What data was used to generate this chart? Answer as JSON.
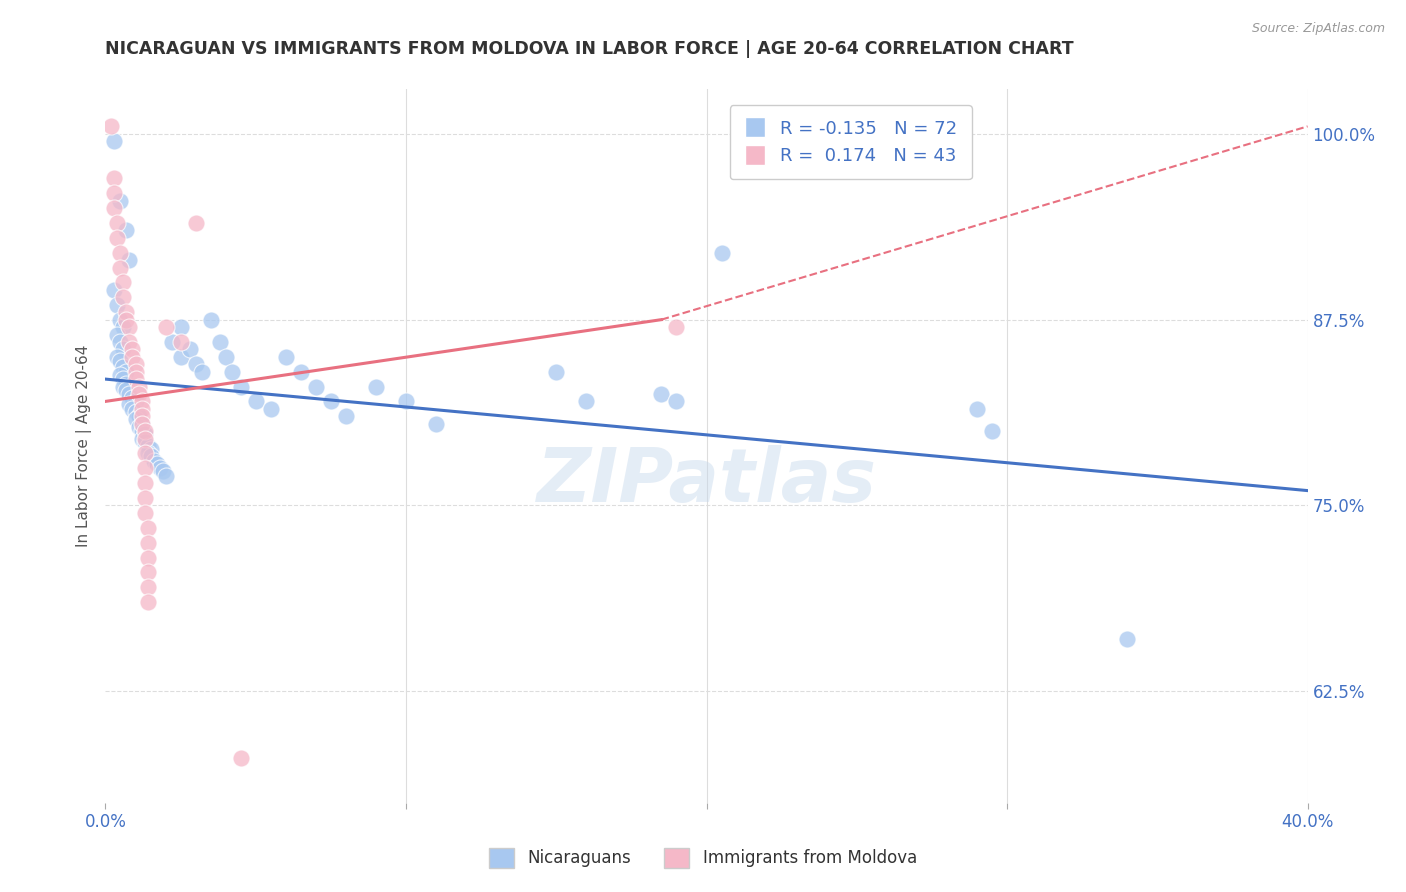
{
  "title": "NICARAGUAN VS IMMIGRANTS FROM MOLDOVA IN LABOR FORCE | AGE 20-64 CORRELATION CHART",
  "source": "Source: ZipAtlas.com",
  "ylabel": "In Labor Force | Age 20-64",
  "xlim": [
    0.0,
    0.4
  ],
  "ylim": [
    0.55,
    1.03
  ],
  "xticks": [
    0.0,
    0.1,
    0.2,
    0.3,
    0.4
  ],
  "xticklabels": [
    "0.0%",
    "",
    "",
    "",
    "40.0%"
  ],
  "yticks_right": [
    0.625,
    0.75,
    0.875,
    1.0
  ],
  "ytick_right_labels": [
    "62.5%",
    "75.0%",
    "87.5%",
    "100.0%"
  ],
  "blue_R": -0.135,
  "blue_N": 72,
  "pink_R": 0.174,
  "pink_N": 43,
  "blue_color": "#A8C8F0",
  "pink_color": "#F5B8C8",
  "blue_line_color": "#4472C4",
  "pink_line_color": "#E87080",
  "blue_scatter": [
    [
      0.003,
      0.995
    ],
    [
      0.005,
      0.955
    ],
    [
      0.007,
      0.935
    ],
    [
      0.008,
      0.915
    ],
    [
      0.003,
      0.895
    ],
    [
      0.004,
      0.885
    ],
    [
      0.005,
      0.875
    ],
    [
      0.006,
      0.87
    ],
    [
      0.004,
      0.865
    ],
    [
      0.005,
      0.86
    ],
    [
      0.006,
      0.855
    ],
    [
      0.004,
      0.85
    ],
    [
      0.005,
      0.847
    ],
    [
      0.006,
      0.843
    ],
    [
      0.007,
      0.84
    ],
    [
      0.005,
      0.838
    ],
    [
      0.006,
      0.835
    ],
    [
      0.007,
      0.832
    ],
    [
      0.006,
      0.83
    ],
    [
      0.007,
      0.828
    ],
    [
      0.008,
      0.825
    ],
    [
      0.009,
      0.822
    ],
    [
      0.01,
      0.82
    ],
    [
      0.008,
      0.818
    ],
    [
      0.009,
      0.815
    ],
    [
      0.01,
      0.813
    ],
    [
      0.011,
      0.81
    ],
    [
      0.01,
      0.808
    ],
    [
      0.012,
      0.805
    ],
    [
      0.011,
      0.803
    ],
    [
      0.012,
      0.8
    ],
    [
      0.013,
      0.798
    ],
    [
      0.012,
      0.795
    ],
    [
      0.013,
      0.793
    ],
    [
      0.014,
      0.79
    ],
    [
      0.015,
      0.788
    ],
    [
      0.014,
      0.785
    ],
    [
      0.015,
      0.783
    ],
    [
      0.016,
      0.78
    ],
    [
      0.017,
      0.778
    ],
    [
      0.018,
      0.775
    ],
    [
      0.019,
      0.773
    ],
    [
      0.02,
      0.77
    ],
    [
      0.022,
      0.86
    ],
    [
      0.025,
      0.87
    ],
    [
      0.025,
      0.85
    ],
    [
      0.028,
      0.855
    ],
    [
      0.03,
      0.845
    ],
    [
      0.032,
      0.84
    ],
    [
      0.035,
      0.875
    ],
    [
      0.038,
      0.86
    ],
    [
      0.04,
      0.85
    ],
    [
      0.042,
      0.84
    ],
    [
      0.045,
      0.83
    ],
    [
      0.05,
      0.82
    ],
    [
      0.055,
      0.815
    ],
    [
      0.06,
      0.85
    ],
    [
      0.065,
      0.84
    ],
    [
      0.07,
      0.83
    ],
    [
      0.075,
      0.82
    ],
    [
      0.08,
      0.81
    ],
    [
      0.09,
      0.83
    ],
    [
      0.1,
      0.82
    ],
    [
      0.11,
      0.805
    ],
    [
      0.15,
      0.84
    ],
    [
      0.16,
      0.82
    ],
    [
      0.185,
      0.825
    ],
    [
      0.19,
      0.82
    ],
    [
      0.205,
      0.92
    ],
    [
      0.29,
      0.815
    ],
    [
      0.295,
      0.8
    ],
    [
      0.34,
      0.66
    ]
  ],
  "pink_scatter": [
    [
      0.002,
      1.005
    ],
    [
      0.003,
      0.97
    ],
    [
      0.003,
      0.96
    ],
    [
      0.003,
      0.95
    ],
    [
      0.004,
      0.94
    ],
    [
      0.004,
      0.93
    ],
    [
      0.005,
      0.92
    ],
    [
      0.005,
      0.91
    ],
    [
      0.006,
      0.9
    ],
    [
      0.006,
      0.89
    ],
    [
      0.007,
      0.88
    ],
    [
      0.007,
      0.875
    ],
    [
      0.008,
      0.87
    ],
    [
      0.008,
      0.86
    ],
    [
      0.009,
      0.855
    ],
    [
      0.009,
      0.85
    ],
    [
      0.01,
      0.845
    ],
    [
      0.01,
      0.84
    ],
    [
      0.01,
      0.835
    ],
    [
      0.011,
      0.83
    ],
    [
      0.011,
      0.825
    ],
    [
      0.012,
      0.82
    ],
    [
      0.012,
      0.815
    ],
    [
      0.012,
      0.81
    ],
    [
      0.012,
      0.805
    ],
    [
      0.013,
      0.8
    ],
    [
      0.013,
      0.795
    ],
    [
      0.013,
      0.785
    ],
    [
      0.013,
      0.775
    ],
    [
      0.013,
      0.765
    ],
    [
      0.013,
      0.755
    ],
    [
      0.013,
      0.745
    ],
    [
      0.014,
      0.735
    ],
    [
      0.014,
      0.725
    ],
    [
      0.014,
      0.715
    ],
    [
      0.014,
      0.705
    ],
    [
      0.014,
      0.695
    ],
    [
      0.014,
      0.685
    ],
    [
      0.02,
      0.87
    ],
    [
      0.025,
      0.86
    ],
    [
      0.03,
      0.94
    ],
    [
      0.045,
      0.58
    ],
    [
      0.19,
      0.87
    ]
  ],
  "watermark": "ZIPatlas",
  "background_color": "#FFFFFF",
  "grid_color": "#DDDDDD"
}
